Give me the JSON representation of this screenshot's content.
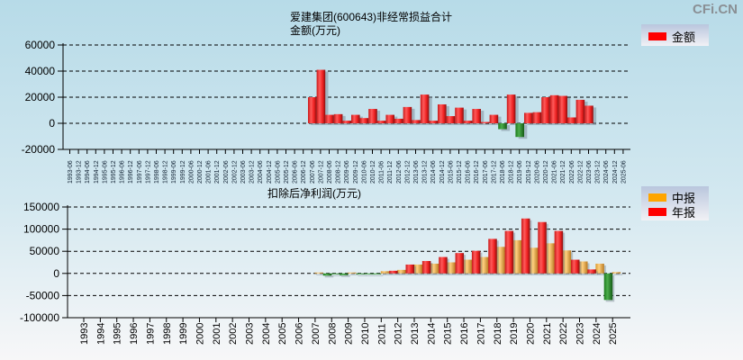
{
  "watermark": "CFi.CN",
  "chart_data": [
    {
      "type": "bar",
      "title": "爱建集团(600643)非经常损益合计",
      "ylabel": "金额(万元)",
      "legend": [
        {
          "name": "金额",
          "color": "#ff0000"
        }
      ],
      "legend_position": "top-right",
      "ylim": [
        -20000,
        60000
      ],
      "yticks": [
        "60000",
        "40000",
        "20000",
        "0",
        "-20000"
      ],
      "ytick_values": [
        60000,
        40000,
        20000,
        0,
        -20000
      ],
      "grid": true,
      "categories": [
        "1993-06",
        "1993-12",
        "1994-06",
        "1994-12",
        "1995-06",
        "1995-12",
        "1996-06",
        "1996-12",
        "1997-06",
        "1997-12",
        "1998-06",
        "1998-12",
        "1999-06",
        "1999-12",
        "2000-06",
        "2000-12",
        "2001-06",
        "2001-12",
        "2002-06",
        "2002-12",
        "2003-06",
        "2003-12",
        "2004-06",
        "2004-12",
        "2005-06",
        "2005-12",
        "2006-06",
        "2006-12",
        "2007-06",
        "2007-12",
        "2008-06",
        "2008-12",
        "2009-06",
        "2009-12",
        "2010-06",
        "2010-12",
        "2011-06",
        "2011-12",
        "2012-06",
        "2012-12",
        "2013-06",
        "2013-12",
        "2014-06",
        "2014-12",
        "2015-06",
        "2015-12",
        "2016-06",
        "2016-12",
        "2017-06",
        "2017-12",
        "2018-06",
        "2018-12",
        "2019-06",
        "2019-12",
        "2020-06",
        "2020-12",
        "2021-06",
        "2021-12",
        "2022-06",
        "2022-12",
        "2023-06",
        "2023-12",
        "2024-06",
        "2024-12",
        "2025-06"
      ],
      "values": [
        null,
        null,
        null,
        null,
        null,
        null,
        null,
        null,
        null,
        null,
        null,
        null,
        null,
        null,
        null,
        null,
        null,
        null,
        null,
        null,
        null,
        null,
        null,
        null,
        null,
        null,
        null,
        null,
        20000,
        41000,
        6500,
        7000,
        2000,
        6500,
        4000,
        11000,
        2000,
        6500,
        3500,
        12500,
        2500,
        22000,
        2000,
        14500,
        5500,
        12000,
        2000,
        11000,
        1000,
        6500,
        -4500,
        22000,
        -10500,
        8000,
        8500,
        20000,
        21500,
        21000,
        4500,
        18000,
        13500,
        null,
        null,
        null,
        null
      ]
    },
    {
      "type": "bar",
      "title": "扣除后净利润(万元)",
      "legend": [
        {
          "name": "中报",
          "color": "#ffa500"
        },
        {
          "name": "年报",
          "color": "#ff0000"
        }
      ],
      "legend_position": "top-right",
      "ylim": [
        -100000,
        150000
      ],
      "yticks": [
        "150000",
        "100000",
        "50000",
        "0",
        "-50000",
        "-100000"
      ],
      "ytick_values": [
        150000,
        100000,
        50000,
        0,
        -50000,
        -100000
      ],
      "grid": true,
      "categories": [
        "1993",
        "1994",
        "1995",
        "1996",
        "1997",
        "1998",
        "1999",
        "2000",
        "2001",
        "2002",
        "2003",
        "2004",
        "2005",
        "2006",
        "2007",
        "2008",
        "2009",
        "2010",
        "2011",
        "2012",
        "2013",
        "2014",
        "2015",
        "2016",
        "2017",
        "2018",
        "2019",
        "2020",
        "2021",
        "2022",
        "2023",
        "2024",
        "2025"
      ],
      "series": [
        {
          "name": "中报",
          "values": [
            null,
            null,
            null,
            null,
            null,
            null,
            null,
            null,
            null,
            null,
            null,
            null,
            null,
            null,
            2000,
            -2000,
            2000,
            -1000,
            5000,
            8000,
            20000,
            22000,
            25000,
            31000,
            37000,
            60000,
            75000,
            58000,
            68000,
            52000,
            27000,
            22000,
            3000
          ]
        },
        {
          "name": "年报",
          "values": [
            null,
            null,
            null,
            null,
            null,
            null,
            null,
            null,
            null,
            null,
            null,
            null,
            null,
            null,
            null,
            -5000,
            -4000,
            -2000,
            -2000,
            6000,
            20000,
            28000,
            37000,
            46000,
            51000,
            78000,
            96000,
            124000,
            116000,
            96000,
            31000,
            9000,
            -60000
          ]
        }
      ]
    }
  ]
}
